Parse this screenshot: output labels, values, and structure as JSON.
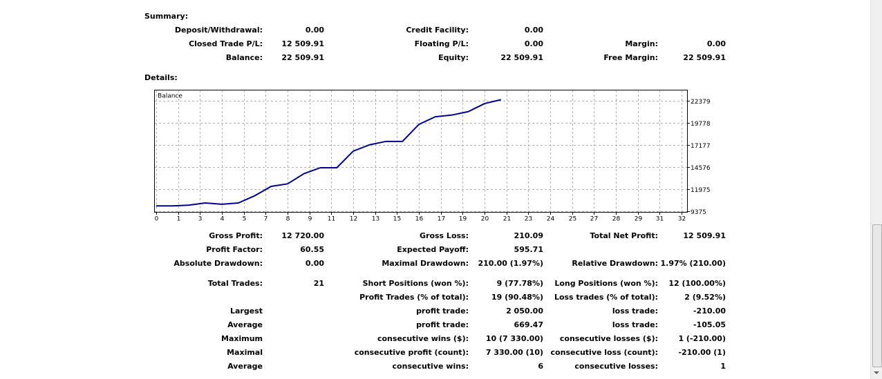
{
  "summary": {
    "title": "Summary:",
    "rows": [
      [
        {
          "label": "Deposit/Withdrawal:",
          "value": "0.00"
        },
        {
          "label": "Credit Facility:",
          "value": "0.00"
        },
        null
      ],
      [
        {
          "label": "Closed Trade P/L:",
          "value": "12 509.91"
        },
        {
          "label": "Floating P/L:",
          "value": "0.00"
        },
        {
          "label": "Margin:",
          "value": "0.00"
        }
      ],
      [
        {
          "label": "Balance:",
          "value": "22 509.91"
        },
        {
          "label": "Equity:",
          "value": "22 509.91"
        },
        {
          "label": "Free Margin:",
          "value": "22 509.91"
        }
      ]
    ]
  },
  "details": {
    "title": "Details:"
  },
  "chart_data": {
    "type": "line",
    "series": [
      {
        "name": "Balance",
        "color": "#00008b",
        "values": [
          10000,
          10000,
          10100,
          10350,
          10200,
          10350,
          11200,
          12300,
          12600,
          13800,
          14500,
          14500,
          16450,
          17200,
          17600,
          17600,
          19600,
          20500,
          20700,
          21100,
          22050,
          22510
        ]
      }
    ],
    "x": [
      0,
      1,
      2,
      3,
      4,
      5,
      6,
      7,
      8,
      9,
      10,
      11,
      12,
      13,
      14,
      15,
      16,
      17,
      18,
      19,
      20,
      21
    ],
    "xlim": [
      0,
      32
    ],
    "xticks": [
      0,
      {
        "value": 1.33,
        "label": "1"
      },
      {
        "value": 2.67,
        "label": "3"
      },
      4,
      {
        "value": 5.33,
        "label": "5"
      },
      {
        "value": 6.67,
        "label": "7"
      },
      8,
      {
        "value": 9.33,
        "label": "9"
      },
      {
        "value": 10.67,
        "label": "11"
      },
      12,
      {
        "value": 13.33,
        "label": "13"
      },
      {
        "value": 14.67,
        "label": "15"
      },
      16,
      {
        "value": 17.33,
        "label": "17"
      },
      {
        "value": 18.67,
        "label": "19"
      },
      20,
      {
        "value": 21.33,
        "label": "21"
      },
      {
        "value": 22.67,
        "label": "23"
      },
      24,
      {
        "value": 25.33,
        "label": "25"
      },
      {
        "value": 26.67,
        "label": "27"
      },
      28,
      {
        "value": 29.33,
        "label": "29"
      },
      {
        "value": 30.67,
        "label": "31"
      },
      32
    ],
    "ylim": [
      9375,
      23600
    ],
    "yticks": [
      9375,
      11975,
      14576,
      17177,
      19778,
      22379
    ],
    "grid": true
  },
  "stats": {
    "rows": [
      [
        {
          "label": "Gross Profit:",
          "value": "12 720.00"
        },
        {
          "label": "Gross Loss:",
          "value": "210.09"
        },
        {
          "label": "Total Net Profit:",
          "value": "12 509.91"
        }
      ],
      [
        {
          "label": "Profit Factor:",
          "value": "60.55"
        },
        {
          "label": "Expected Payoff:",
          "value": "595.71"
        },
        null
      ],
      [
        {
          "label": "Absolute Drawdown:",
          "value": "0.00"
        },
        {
          "label": "Maximal Drawdown:",
          "value": "210.00 (1.97%)"
        },
        {
          "label": "Relative Drawdown:",
          "value": "1.97% (210.00)"
        }
      ],
      [
        {
          "label": "Total Trades:",
          "value": "21"
        },
        {
          "label": "Short Positions (won %):",
          "value": "9 (77.78%)"
        },
        {
          "label": "Long Positions (won %):",
          "value": "12 (100.00%)"
        }
      ],
      [
        null,
        {
          "label": "Profit Trades (% of total):",
          "value": "19 (90.48%)"
        },
        {
          "label": "Loss trades (% of total):",
          "value": "2 (9.52%)"
        }
      ],
      [
        {
          "label": "Largest"
        },
        {
          "label": "profit trade:",
          "value": "2 050.00"
        },
        {
          "label": "loss trade:",
          "value": "-210.00"
        }
      ],
      [
        {
          "label": "Average"
        },
        {
          "label": "profit trade:",
          "value": "669.47"
        },
        {
          "label": "loss trade:",
          "value": "-105.05"
        }
      ],
      [
        {
          "label": "Maximum"
        },
        {
          "label": "consecutive wins ($):",
          "value": "10 (7 330.00)"
        },
        {
          "label": "consecutive losses ($):",
          "value": "1 (-210.00)"
        }
      ],
      [
        {
          "label": "Maximal"
        },
        {
          "label": "consecutive profit (count):",
          "value": "7 330.00 (10)"
        },
        {
          "label": "consecutive loss (count):",
          "value": "-210.00 (1)"
        }
      ],
      [
        {
          "label": "Average"
        },
        {
          "label": "consecutive wins:",
          "value": "6"
        },
        {
          "label": "consecutive losses:",
          "value": "1"
        }
      ]
    ]
  }
}
